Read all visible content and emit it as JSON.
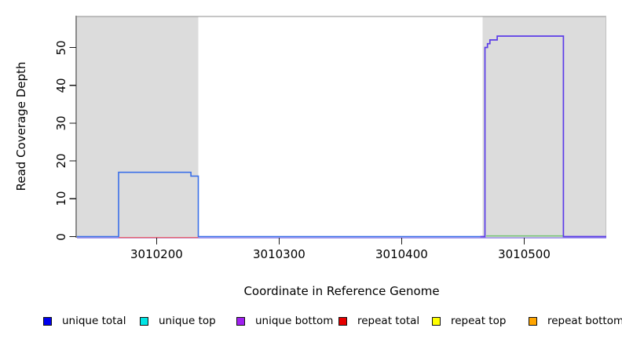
{
  "figure": {
    "background": "#ffffff",
    "plot_bg_shaded": "#dcdcdc",
    "box_top_line_color": "#8c8c8c"
  },
  "axes": {
    "x_title": "Coordinate in Reference Genome",
    "y_title": "Read Coverage Depth",
    "x_tick_labels": [
      "3010200",
      "3010300",
      "3010400",
      "3010500"
    ],
    "y_tick_labels": [
      "0",
      "10",
      "20",
      "30",
      "40",
      "50"
    ]
  },
  "legend": {
    "items": [
      {
        "label": "unique total",
        "color": "#0000ee"
      },
      {
        "label": "unique top",
        "color": "#00e5e5"
      },
      {
        "label": "unique bottom",
        "color": "#a020f0"
      },
      {
        "label": "repeat total",
        "color": "#e60000"
      },
      {
        "label": "repeat top",
        "color": "#ffff00"
      },
      {
        "label": "repeat bottom",
        "color": "#ffa500"
      }
    ]
  },
  "chart_data": {
    "type": "line",
    "title": "",
    "xlabel": "Coordinate in Reference Genome",
    "ylabel": "Read Coverage Depth",
    "xlim": [
      3010135,
      3010567
    ],
    "ylim": [
      0,
      58
    ],
    "x_ticks": [
      3010200,
      3010300,
      3010400,
      3010500
    ],
    "y_ticks": [
      0,
      10,
      20,
      30,
      40,
      50
    ],
    "grid": false,
    "legend_position": "bottom",
    "shaded_regions": [
      {
        "name": "left-read-region",
        "x0": 3010135,
        "x1": 3010234,
        "color": "#dcdcdc"
      },
      {
        "name": "right-read-region",
        "x0": 3010466,
        "x1": 3010567,
        "color": "#dcdcdc"
      }
    ],
    "readings": {
      "left_read_block": {
        "series": "unique total (blue)",
        "x_start": 3010169,
        "x_end": 3010234,
        "depth_plateau": 17,
        "depth_step_down": 16,
        "baseline_red_repeat_total": 0
      },
      "right_read_block": {
        "series": "unique bottom / total (purple-blue)",
        "x_start": 3010468,
        "x_end": 3010532,
        "depth_steps_up": [
          50,
          51,
          52
        ],
        "depth_plateau": 53,
        "baseline_green_segment": 0
      },
      "elsewhere_depth": 0
    },
    "draw_series": [
      {
        "name": "baseline-bottom-purple",
        "color": "#8b7ce8",
        "width": 1.3,
        "yoff": 1.6,
        "points": [
          [
            3010135,
            0
          ],
          [
            3010567,
            0
          ]
        ]
      },
      {
        "name": "green-baseline-segment",
        "color": "#74c474",
        "width": 1.5,
        "yoff": -0.9,
        "points": [
          [
            3010469,
            0
          ],
          [
            3010532,
            0
          ]
        ]
      },
      {
        "name": "repeat-total-red-segment",
        "color": "#e8636e",
        "width": 1.4,
        "yoff": 1.2,
        "points": [
          [
            3010169,
            0
          ],
          [
            3010234,
            0
          ]
        ]
      },
      {
        "name": "unique-total-blue",
        "color": "#3a6fe8",
        "width": 1.6,
        "yoff": 0,
        "points": [
          [
            3010135,
            0
          ],
          [
            3010169,
            0
          ],
          [
            3010169,
            17
          ],
          [
            3010228,
            17
          ],
          [
            3010228,
            16
          ],
          [
            3010234,
            16
          ],
          [
            3010234,
            0
          ],
          [
            3010464,
            0
          ]
        ]
      },
      {
        "name": "unique-bottom-purple",
        "color": "#5b3de8",
        "width": 1.7,
        "yoff": 0,
        "points": [
          [
            3010464,
            0
          ],
          [
            3010468,
            0
          ],
          [
            3010468,
            50
          ],
          [
            3010470,
            50
          ],
          [
            3010470,
            51
          ],
          [
            3010472,
            51
          ],
          [
            3010472,
            52
          ],
          [
            3010478,
            52
          ],
          [
            3010478,
            53
          ],
          [
            3010532,
            53
          ],
          [
            3010532,
            0
          ],
          [
            3010567,
            0
          ]
        ]
      }
    ]
  }
}
